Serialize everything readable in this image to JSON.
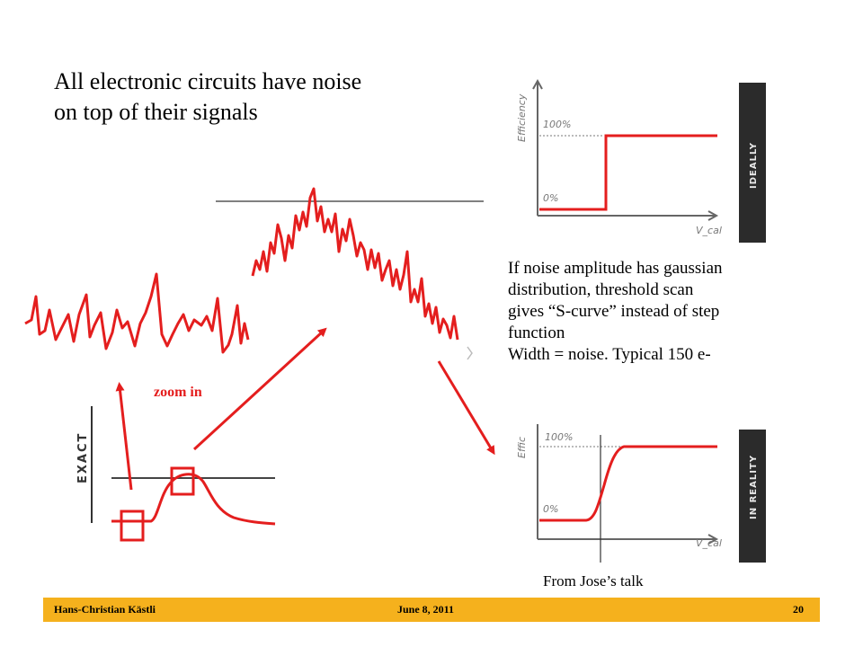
{
  "title": {
    "line1": "All electronic circuits have noise",
    "line2": "on top of their signals"
  },
  "explanation": {
    "line1": "If noise amplitude has gaussian",
    "line2": "distribution, threshold scan",
    "line3": "gives “S-curve” instead of step",
    "line4": "function",
    "line5": "Width = noise. Typical 150 e-"
  },
  "zoom_label": "zoom in",
  "source_note": "From Jose’s talk",
  "exact_panel": {
    "label": "EXACT"
  },
  "ideal_plot": {
    "ylabel": "Efficiency",
    "xlabel": "V_cal",
    "tick_top": "100%",
    "tick_bottom": "0%",
    "side_label": "IDEALLY"
  },
  "real_plot": {
    "ylabel": "Effic",
    "xlabel": "V_cal",
    "tick_top": "100%",
    "tick_bottom": "0%",
    "side_label": "IN REALITY"
  },
  "footer": {
    "author": "Hans-Christian Kästli",
    "date": "June 8, 2011",
    "page": "20"
  },
  "colors": {
    "signal": "#e41e1e",
    "footer_bar": "#f5b11d",
    "panel_dark": "#2b2b2b"
  }
}
